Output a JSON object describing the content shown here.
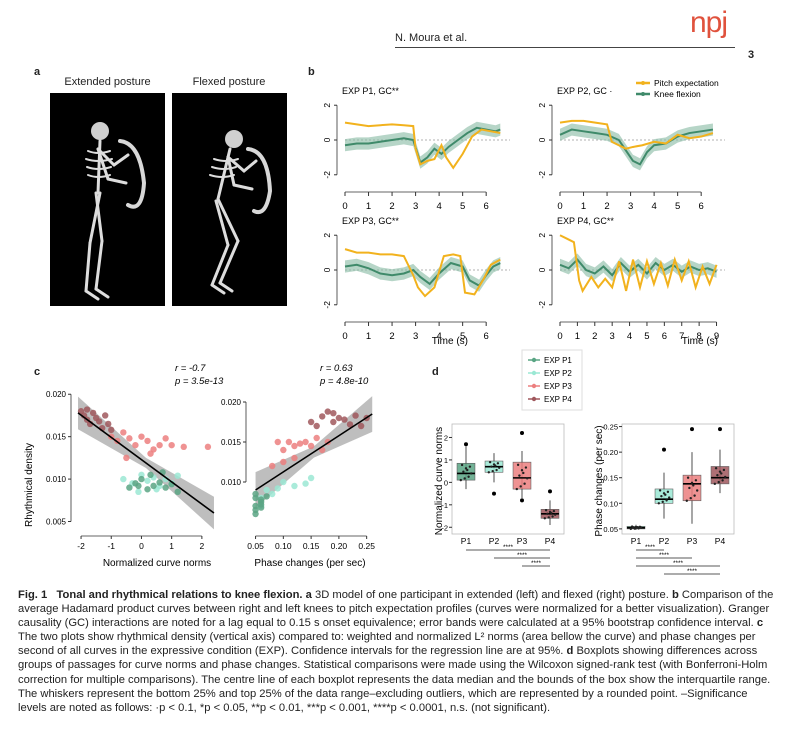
{
  "header": {
    "author": "N. Moura et al.",
    "journal": "npj",
    "page": "3"
  },
  "panels": {
    "a": {
      "label": "a",
      "titles": [
        "Extended posture",
        "Flexed posture"
      ]
    },
    "b": {
      "label": "b",
      "legend": [
        "Pitch expectation",
        "Knee flexion"
      ],
      "xlabel": "Time (s)",
      "titles": [
        "EXP P1, GC**",
        "EXP P2, GC ·",
        "EXP P3, GC**",
        "EXP P4, GC**"
      ]
    },
    "c": {
      "label": "c",
      "ylabel": "Rhythmical density",
      "left": {
        "xlabel": "Normalized curve norms",
        "r": "r = -0.7",
        "p": "p = 3.5e-13"
      },
      "right": {
        "xlabel": "Phase changes (per sec)",
        "r": "r = 0.63",
        "p": "p = 4.8e-10"
      }
    },
    "d": {
      "label": "d",
      "legend": [
        "EXP P1",
        "EXP P2",
        "EXP P3",
        "EXP P4"
      ],
      "left_ylabel": "Normalized curve norms",
      "right_ylabel": "Phase changes (per sec)",
      "sig": "****"
    }
  },
  "colors": {
    "pitch": "#f2b21d",
    "knee": "#3f8a6a",
    "band": "#86b9a2",
    "p1": "#5aa584",
    "p2": "#9be8d4",
    "p3": "#ec7f7f",
    "p4": "#a0585d",
    "logo": "#e0523d"
  },
  "chart_data": [
    {
      "type": "line",
      "title": "EXP P1, GC**",
      "xlabel": "",
      "ylabel": "",
      "xlim": [
        0,
        6.8
      ],
      "ylim": [
        -2.3,
        2.3
      ],
      "series": [
        {
          "name": "Pitch expectation",
          "x": [
            0,
            0.5,
            1,
            1.5,
            2,
            2.5,
            2.9,
            3.0,
            3.2,
            3.5,
            3.8,
            4.1,
            4.3,
            4.6,
            5.0,
            5.4,
            5.8,
            6.2,
            6.6
          ],
          "values": [
            1.0,
            0.9,
            0.8,
            0.85,
            0.9,
            0.85,
            0.8,
            -0.5,
            -1.4,
            -1.2,
            -1.1,
            -0.3,
            -1.0,
            -1.6,
            -0.8,
            0.2,
            0.6,
            0.5,
            0.4
          ]
        },
        {
          "name": "Knee flexion",
          "x": [
            0,
            0.5,
            1,
            1.5,
            2,
            2.5,
            2.9,
            3.2,
            3.5,
            3.8,
            4.1,
            4.4,
            4.8,
            5.2,
            5.6,
            6.0,
            6.4,
            6.6
          ],
          "values": [
            -0.3,
            -0.2,
            -0.2,
            -0.1,
            0.0,
            0.1,
            0.0,
            -1.3,
            -1.0,
            -0.5,
            -0.8,
            -0.4,
            0.0,
            0.4,
            0.7,
            0.6,
            0.5,
            0.6
          ]
        }
      ]
    },
    {
      "type": "line",
      "title": "EXP P2, GC ·",
      "xlabel": "",
      "ylabel": "",
      "xlim": [
        0,
        6.8
      ],
      "ylim": [
        -2.3,
        2.3
      ],
      "series": [
        {
          "name": "Pitch expectation",
          "x": [
            0,
            0.5,
            1,
            1.5,
            2,
            2.2,
            2.5,
            2.8,
            3.1,
            3.5,
            4.0,
            4.5,
            5.0,
            5.5,
            6.0,
            6.5
          ],
          "values": [
            1.0,
            1.1,
            1.1,
            1.0,
            0.9,
            -0.1,
            -0.3,
            -0.5,
            -0.4,
            -0.3,
            -0.1,
            -0.2,
            0.3,
            0.1,
            0.2,
            0.4
          ]
        },
        {
          "name": "Knee flexion",
          "x": [
            0,
            0.5,
            1,
            1.5,
            2,
            2.5,
            2.8,
            3.1,
            3.4,
            3.7,
            4.0,
            4.5,
            5.0,
            5.5,
            6.0,
            6.5
          ],
          "values": [
            0.3,
            0.6,
            0.5,
            0.4,
            0.3,
            0.0,
            -0.6,
            -1.2,
            -1.4,
            -0.7,
            -0.3,
            -0.2,
            0.2,
            0.4,
            0.5,
            0.6
          ]
        }
      ]
    },
    {
      "type": "line",
      "title": "EXP P3, GC**",
      "xlabel": "",
      "ylabel": "",
      "xlim": [
        0,
        6.8
      ],
      "ylim": [
        -2.3,
        2.3
      ],
      "series": [
        {
          "name": "Pitch expectation",
          "x": [
            0,
            0.5,
            1,
            1.5,
            2,
            2.5,
            2.9,
            3.1,
            3.4,
            3.8,
            4.2,
            4.6,
            4.9,
            5.1,
            5.5,
            5.9,
            6.2,
            6.6
          ],
          "values": [
            1.2,
            1.0,
            1.0,
            0.9,
            0.9,
            0.8,
            -0.3,
            -1.0,
            -1.5,
            -1.0,
            0.8,
            0.9,
            0.8,
            -1.3,
            -1.4,
            -0.5,
            0.3,
            0.6
          ]
        },
        {
          "name": "Knee flexion",
          "x": [
            0,
            0.5,
            1,
            1.5,
            2,
            2.5,
            2.9,
            3.2,
            3.6,
            4.0,
            4.5,
            5.0,
            5.3,
            5.7,
            6.0,
            6.3,
            6.6
          ],
          "values": [
            0.2,
            0.3,
            0.1,
            -0.2,
            -0.3,
            -0.2,
            0.0,
            -0.4,
            -0.8,
            -0.2,
            0.4,
            0.2,
            -0.6,
            -0.9,
            -0.3,
            0.2,
            0.4
          ]
        }
      ]
    },
    {
      "type": "line",
      "title": "EXP P4, GC**",
      "xlabel": "",
      "ylabel": "",
      "xlim": [
        0,
        9.2
      ],
      "ylim": [
        -2.3,
        2.3
      ],
      "series": [
        {
          "name": "Pitch expectation",
          "x": [
            0,
            0.4,
            0.8,
            1.1,
            1.3,
            1.8,
            2.2,
            2.6,
            3.0,
            3.4,
            3.8,
            4.2,
            4.6,
            5.0,
            5.4,
            5.8,
            6.2,
            6.6,
            7.0,
            7.4,
            7.8,
            8.2,
            8.6,
            9.0
          ],
          "values": [
            2.0,
            1.8,
            1.6,
            -0.6,
            -1.2,
            -0.4,
            -1.0,
            -0.5,
            -1.0,
            0.5,
            -1.2,
            0.6,
            -1.0,
            0.5,
            -0.8,
            0.4,
            -0.9,
            0.6,
            -0.6,
            0.5,
            -1.0,
            0.2,
            -0.8,
            0.3
          ]
        },
        {
          "name": "Knee flexion",
          "x": [
            0,
            0.5,
            1,
            1.5,
            2,
            2.5,
            3,
            3.5,
            4,
            4.5,
            5,
            5.5,
            6,
            6.5,
            7,
            7.5,
            8,
            8.5,
            9
          ],
          "values": [
            0.3,
            0.1,
            0.6,
            0.0,
            -0.2,
            0.2,
            -0.3,
            0.4,
            -0.1,
            0.3,
            -0.2,
            0.4,
            0.0,
            0.3,
            -0.1,
            0.2,
            0.0,
            0.1,
            -0.1
          ]
        }
      ]
    },
    {
      "type": "scatter",
      "title": "",
      "xlabel": "Normalized curve norms",
      "ylabel": "Rhythmical density",
      "xlim": [
        -2.2,
        2.6
      ],
      "ylim": [
        0.004,
        0.0205
      ],
      "annotations": [
        "r = -0.7",
        "p = 3.5e-13"
      ],
      "regression": {
        "x": [
          -2.1,
          2.4
        ],
        "y": [
          0.0178,
          0.006
        ]
      },
      "series": [
        {
          "name": "EXP P4",
          "x": [
            -2.0,
            -1.9,
            -1.8,
            -1.6,
            -1.5,
            -1.7,
            -1.4,
            -1.3,
            -1.1,
            -1.2,
            -1.8,
            -1.0
          ],
          "values": [
            0.018,
            0.0175,
            0.017,
            0.0178,
            0.0172,
            0.0165,
            0.0168,
            0.016,
            0.0165,
            0.0175,
            0.0182,
            0.0158
          ]
        },
        {
          "name": "EXP P3",
          "x": [
            -1.0,
            -0.8,
            -0.6,
            -0.4,
            -0.2,
            0.0,
            0.2,
            0.4,
            0.6,
            0.8,
            1.0,
            1.4,
            -0.5,
            0.3,
            2.2
          ],
          "values": [
            0.015,
            0.0145,
            0.0155,
            0.0148,
            0.014,
            0.015,
            0.0145,
            0.0135,
            0.014,
            0.0148,
            0.014,
            0.0138,
            0.0125,
            0.013,
            0.0138
          ]
        },
        {
          "name": "EXP P2",
          "x": [
            -0.6,
            -0.3,
            0.0,
            0.2,
            0.4,
            0.6,
            0.8,
            1.0,
            -0.1,
            0.5,
            1.2
          ],
          "values": [
            0.01,
            0.0095,
            0.0105,
            0.0098,
            0.0102,
            0.0092,
            0.01,
            0.0095,
            0.0085,
            0.0088,
            0.0104
          ]
        },
        {
          "name": "EXP P1",
          "x": [
            -0.4,
            -0.2,
            0.0,
            0.2,
            0.4,
            0.6,
            0.8,
            1.0,
            1.2,
            0.3,
            0.7,
            -0.1
          ],
          "values": [
            0.009,
            0.0095,
            0.01,
            0.0088,
            0.0092,
            0.0096,
            0.009,
            0.0094,
            0.0085,
            0.0105,
            0.0108,
            0.0092
          ]
        }
      ]
    },
    {
      "type": "scatter",
      "title": "",
      "xlabel": "Phase changes (per sec)",
      "ylabel": "",
      "xlim": [
        0.04,
        0.265
      ],
      "ylim": [
        0.004,
        0.0215
      ],
      "annotations": [
        "r = 0.63",
        "p = 4.8e-10"
      ],
      "regression": {
        "x": [
          0.05,
          0.26
        ],
        "y": [
          0.009,
          0.0185
        ]
      },
      "series": [
        {
          "name": "EXP P4",
          "x": [
            0.15,
            0.17,
            0.19,
            0.2,
            0.21,
            0.23,
            0.25,
            0.16,
            0.18,
            0.22,
            0.24,
            0.19
          ],
          "values": [
            0.0175,
            0.0182,
            0.0175,
            0.018,
            0.0178,
            0.0183,
            0.018,
            0.017,
            0.0188,
            0.0172,
            0.017,
            0.0186
          ]
        },
        {
          "name": "EXP P3",
          "x": [
            0.08,
            0.1,
            0.11,
            0.12,
            0.13,
            0.14,
            0.15,
            0.16,
            0.18,
            0.17,
            0.09,
            0.12,
            0.1
          ],
          "values": [
            0.012,
            0.014,
            0.015,
            0.0145,
            0.0148,
            0.015,
            0.0145,
            0.0155,
            0.015,
            0.014,
            0.015,
            0.013,
            0.0125
          ]
        },
        {
          "name": "EXP P2",
          "x": [
            0.06,
            0.07,
            0.09,
            0.1,
            0.12,
            0.14,
            0.15,
            0.06,
            0.08
          ],
          "values": [
            0.008,
            0.009,
            0.0092,
            0.01,
            0.0095,
            0.0098,
            0.0105,
            0.007,
            0.0085
          ]
        },
        {
          "name": "EXP P1",
          "x": [
            0.05,
            0.05,
            0.06,
            0.05,
            0.06,
            0.05,
            0.06,
            0.05,
            0.06,
            0.07
          ],
          "values": [
            0.0065,
            0.007,
            0.0075,
            0.008,
            0.0068,
            0.0085,
            0.0072,
            0.006,
            0.0078,
            0.0082
          ]
        }
      ]
    },
    {
      "type": "bar",
      "title": "",
      "xlabel": "",
      "ylabel": "Normalized curve norms",
      "categories": [
        "P1",
        "P2",
        "P3",
        "P4"
      ],
      "ylim": [
        -2.3,
        2.6
      ],
      "box": [
        {
          "min": -0.3,
          "q1": 0.1,
          "median": 0.4,
          "q3": 0.85,
          "max": 1.6
        },
        {
          "min": 0.0,
          "q1": 0.45,
          "median": 0.7,
          "q3": 0.95,
          "max": 1.3
        },
        {
          "min": -0.7,
          "q1": -0.3,
          "median": 0.2,
          "q3": 0.9,
          "max": 1.4
        },
        {
          "min": -1.9,
          "q1": -1.6,
          "median": -1.4,
          "q3": -1.2,
          "max": -0.8
        }
      ],
      "outliers": [
        [
          1,
          1.7
        ],
        [
          2,
          -0.5
        ],
        [
          3,
          2.2
        ],
        [
          3,
          -0.8
        ],
        [
          4,
          -0.4
        ]
      ],
      "significance": [
        [
          "P1",
          "P4",
          "****"
        ],
        [
          "P2",
          "P4",
          "****"
        ],
        [
          "P3",
          "P4",
          "****"
        ]
      ]
    },
    {
      "type": "bar",
      "title": "",
      "xlabel": "",
      "ylabel": "Phase changes (per sec)",
      "categories": [
        "P1",
        "P2",
        "P3",
        "P4"
      ],
      "ylim": [
        0.04,
        0.255
      ],
      "box": [
        {
          "min": 0.048,
          "q1": 0.05,
          "median": 0.052,
          "q3": 0.055,
          "max": 0.058
        },
        {
          "min": 0.07,
          "q1": 0.1,
          "median": 0.108,
          "q3": 0.128,
          "max": 0.16
        },
        {
          "min": 0.06,
          "q1": 0.105,
          "median": 0.138,
          "q3": 0.155,
          "max": 0.2
        },
        {
          "min": 0.12,
          "q1": 0.138,
          "median": 0.15,
          "q3": 0.172,
          "max": 0.205
        }
      ],
      "outliers": [
        [
          2,
          0.205
        ],
        [
          3,
          0.245
        ],
        [
          4,
          0.245
        ]
      ],
      "significance": [
        [
          "P1",
          "P2",
          "****"
        ],
        [
          "P1",
          "P3",
          "****"
        ],
        [
          "P1",
          "P4",
          "****"
        ],
        [
          "P2",
          "P4",
          "****"
        ]
      ]
    }
  ],
  "caption": {
    "fig": "Fig. 1",
    "title": "Tonal and rhythmical relations to knee flexion.",
    "a_text": "3D model of one participant in extended (left) and flexed (right) posture.",
    "b_text": "Comparison of the average Hadamard product curves between right and left knees to pitch expectation profiles (curves were normalized for a better visualization). Granger causality (GC) interactions are noted for a lag equal to 0.15 s onset equivalence; error bands were calculated at a 95% bootstrap confidence interval.",
    "c_text": "The two plots show rhythmical density (vertical axis) compared to: weighted and normalized L² norms (area bellow the curve) and phase changes per second of all curves in the expressive condition (EXP). Confidence intervals for the regression line are at 95%.",
    "d_text": "Boxplots showing differences across groups of passages for curve norms and phase changes. Statistical comparisons were made using the Wilcoxon signed-rank test (with Bonferroni-Holm correction for multiple comparisons). The centre line of each boxplot represents the data median and the bounds of the box show the interquartile range. The whiskers represent the bottom 25% and top 25% of the data range–excluding outliers, which are represented by a rounded point. –Significance levels are noted as follows: ·p < 0.1, *p < 0.05, **p < 0.01, ***p < 0.001, ****p < 0.0001, n.s. (not significant)."
  }
}
